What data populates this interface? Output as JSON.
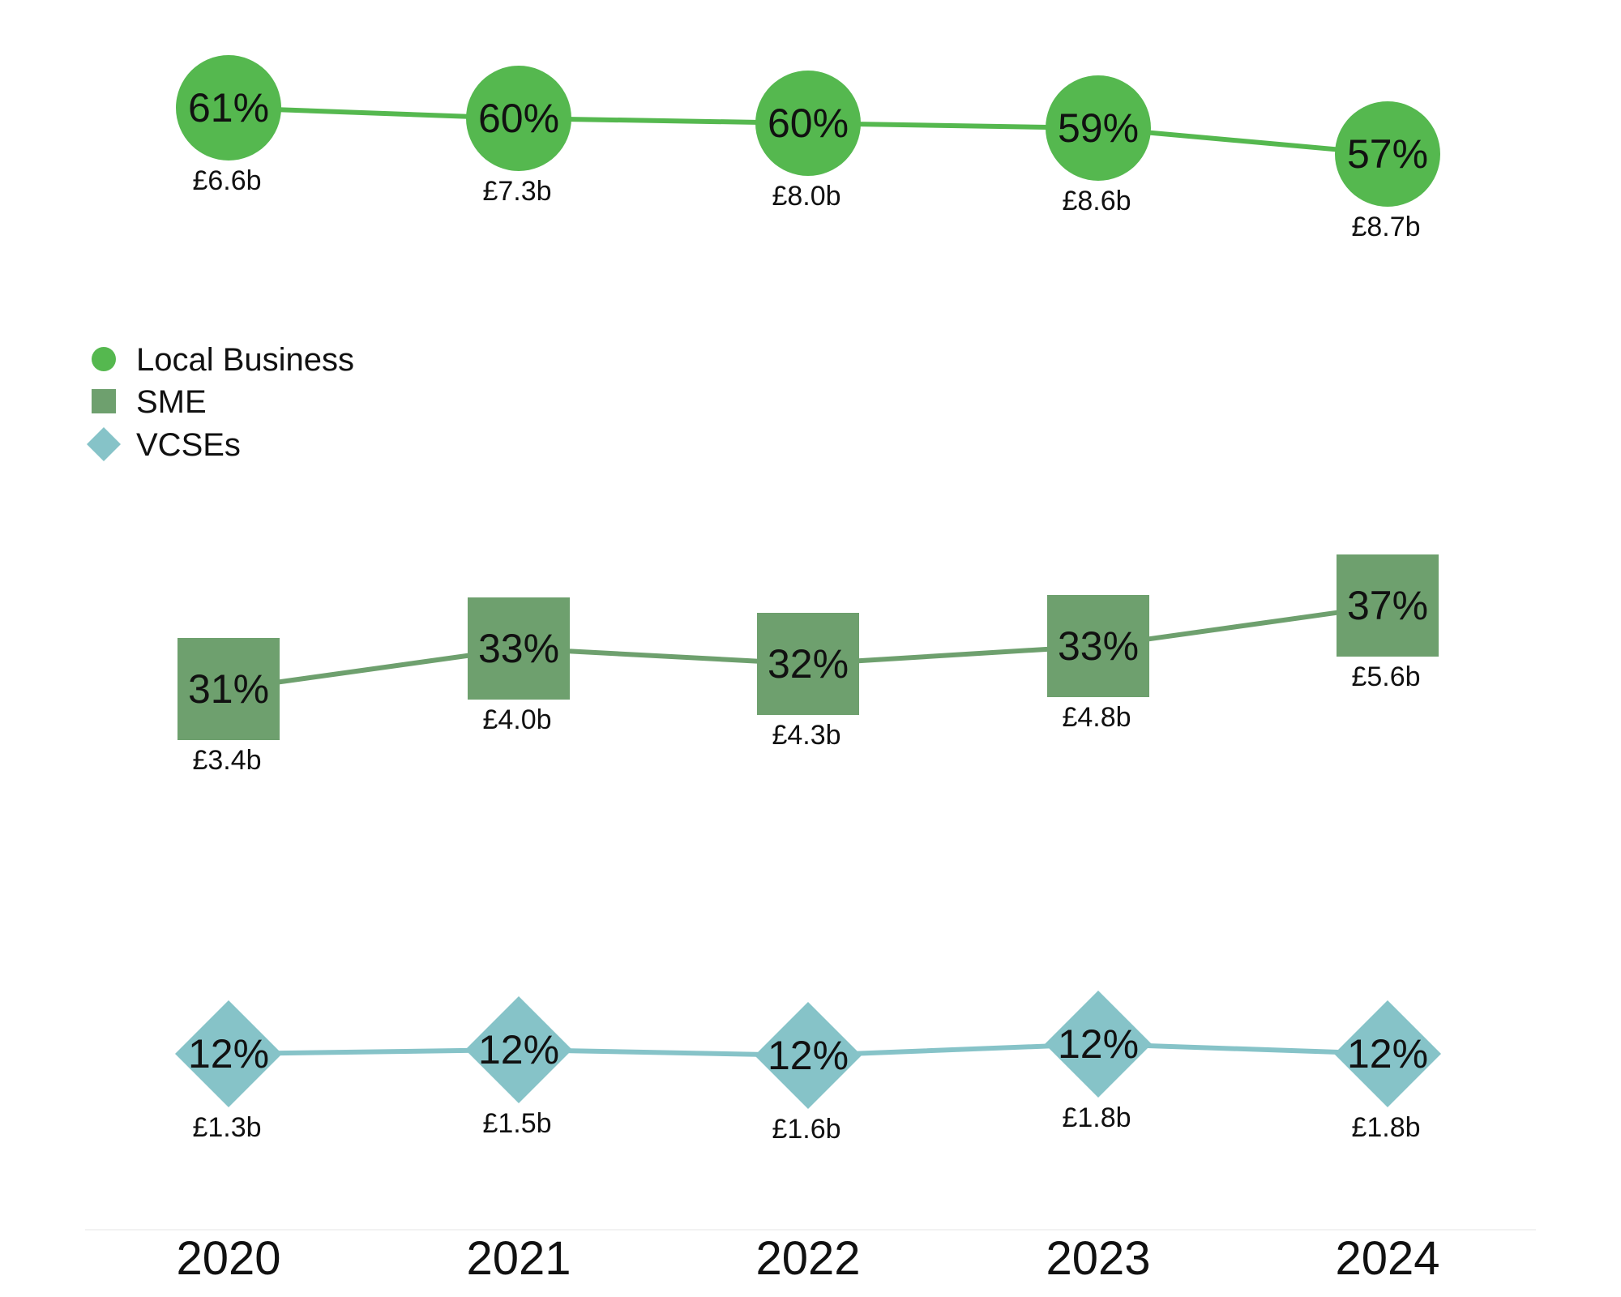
{
  "chart_data": {
    "type": "line",
    "categories": [
      "2020",
      "2021",
      "2022",
      "2023",
      "2024"
    ],
    "series": [
      {
        "name": "Local Business",
        "marker": "circle",
        "color": "#55b84f",
        "values": [
          61,
          60,
          60,
          59,
          57
        ],
        "value_labels": [
          "61%",
          "60%",
          "60%",
          "59%",
          "57%"
        ],
        "spend_labels": [
          "£6.6b",
          "£7.3b",
          "£8.0b",
          "£8.6b",
          "£8.7b"
        ]
      },
      {
        "name": "SME",
        "marker": "square",
        "color": "#6ea06e",
        "values": [
          31,
          33,
          32,
          33,
          37
        ],
        "value_labels": [
          "31%",
          "33%",
          "32%",
          "33%",
          "37%"
        ],
        "spend_labels": [
          "£3.4b",
          "£4.0b",
          "£4.3b",
          "£4.8b",
          "£5.6b"
        ]
      },
      {
        "name": "VCSEs",
        "marker": "diamond",
        "color": "#86c3c8",
        "values": [
          12,
          12,
          12,
          12,
          12
        ],
        "value_labels": [
          "12%",
          "12%",
          "12%",
          "12%",
          "12%"
        ],
        "spend_labels": [
          "£1.3b",
          "£1.5b",
          "£1.6b",
          "£1.8b",
          "£1.8b"
        ]
      }
    ],
    "legend": "left",
    "grid": false
  }
}
